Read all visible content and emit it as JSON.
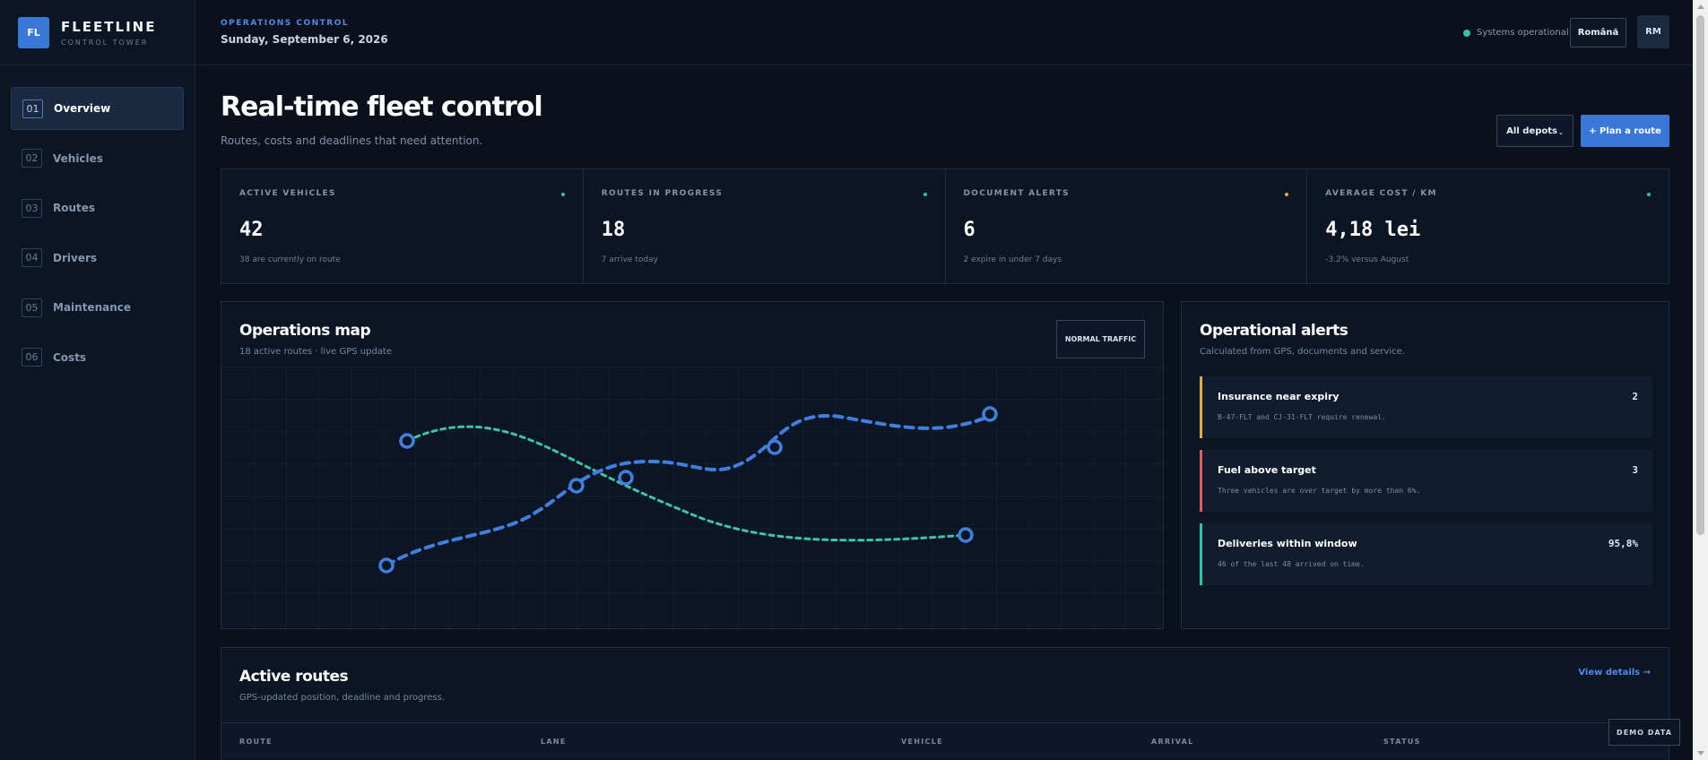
{
  "brand": {
    "mark": "FL",
    "name": "FLEETLINE",
    "subtitle": "CONTROL TOWER"
  },
  "nav": [
    {
      "num": "01",
      "label": "Overview",
      "active": true
    },
    {
      "num": "02",
      "label": "Vehicles",
      "active": false
    },
    {
      "num": "03",
      "label": "Routes",
      "active": false
    },
    {
      "num": "04",
      "label": "Drivers",
      "active": false
    },
    {
      "num": "05",
      "label": "Maintenance",
      "active": false
    },
    {
      "num": "06",
      "label": "Costs",
      "active": false
    }
  ],
  "header": {
    "eyebrow": "OPERATIONS CONTROL",
    "date": "Sunday, September 6, 2026",
    "status": "Systems operational",
    "language": "Română",
    "avatar": "RM"
  },
  "page": {
    "title": "Real-time fleet control",
    "subtitle": "Routes, costs and deadlines that need attention.",
    "depots_button": "All depots",
    "plan_button": "+ Plan a route"
  },
  "stats": [
    {
      "label": "ACTIVE VEHICLES",
      "value": "42",
      "note": "38 are currently on route",
      "color": "#33c3a0"
    },
    {
      "label": "ROUTES IN PROGRESS",
      "value": "18",
      "note": "7 arrive today",
      "color": "#33c3a0"
    },
    {
      "label": "DOCUMENT ALERTS",
      "value": "6",
      "note": "2 expire in under 7 days",
      "color": "#e6a83c"
    },
    {
      "label": "AVERAGE COST / KM",
      "value": "4,18 lei",
      "note": "-3.2% versus August",
      "color": "#33c3a0"
    }
  ],
  "map": {
    "title": "Operations map",
    "subtitle": "18 active routes · live GPS update",
    "traffic_badge": "NORMAL TRAFFIC",
    "route_colors": {
      "primary": "#3f7fe0",
      "secondary": "#3cc4a3"
    }
  },
  "alerts": {
    "title": "Operational alerts",
    "subtitle": "Calculated from GPS, documents and service.",
    "items": [
      {
        "title": "Insurance near expiry",
        "desc": "B-47-FLT and CJ-31-FLT require renewal.",
        "value": "2",
        "color": "#e6a83c"
      },
      {
        "title": "Fuel above target",
        "desc": "Three vehicles are over target by more than 6%.",
        "value": "3",
        "color": "#e25c5c"
      },
      {
        "title": "Deliveries within window",
        "desc": "46 of the last 48 arrived on time.",
        "value": "95,8%",
        "color": "#33c3a0"
      }
    ]
  },
  "routes": {
    "title": "Active routes",
    "subtitle": "GPS-updated position, deadline and progress.",
    "link": "View details →",
    "columns": [
      "ROUTE",
      "LANE",
      "VEHICLE",
      "ARRIVAL",
      "STATUS"
    ]
  },
  "demo_badge": "DEMO DATA"
}
